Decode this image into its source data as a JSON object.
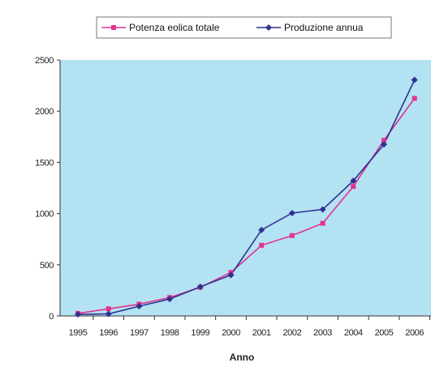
{
  "chart_data": {
    "type": "line",
    "title": "",
    "xlabel": "Anno",
    "ylabel": "",
    "categories": [
      "1995",
      "1996",
      "1997",
      "1998",
      "1999",
      "2000",
      "2001",
      "2002",
      "2003",
      "2004",
      "2005",
      "2006"
    ],
    "ylim": [
      0,
      2500
    ],
    "yticks": [
      "0",
      "500",
      "1000",
      "1500",
      "2000",
      "2500"
    ],
    "legend_position": "top",
    "grid": false,
    "plot_background": "#b3e2f2",
    "series": [
      {
        "name": "Potenza eolica totale",
        "color": "#e0348f",
        "marker": "square",
        "values": [
          25,
          70,
          115,
          180,
          280,
          425,
          690,
          785,
          905,
          1265,
          1715,
          2125
        ]
      },
      {
        "name": "Produzione annua",
        "color": "#2e3192",
        "marker": "diamond",
        "values": [
          15,
          20,
          95,
          165,
          285,
          400,
          840,
          1005,
          1040,
          1320,
          1675,
          2305
        ]
      }
    ]
  }
}
